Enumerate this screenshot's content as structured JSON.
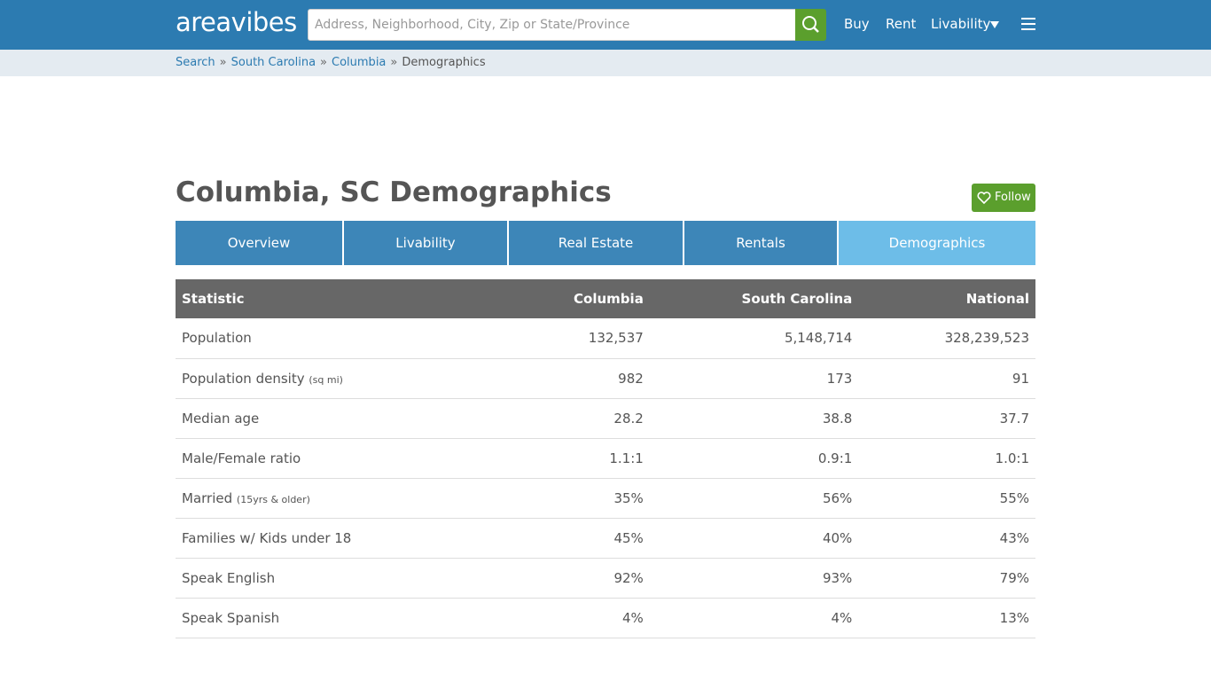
{
  "header": {
    "logo": "areavibes",
    "search_placeholder": "Address, Neighborhood, City, Zip or State/Province",
    "nav": [
      "Buy",
      "Rent",
      "Livability"
    ]
  },
  "breadcrumb": {
    "items": [
      "Search",
      "South Carolina",
      "Columbia",
      "Demographics"
    ],
    "separator": "»"
  },
  "page": {
    "title": "Columbia, SC Demographics",
    "follow": "Follow",
    "tabs": [
      "Overview",
      "Livability",
      "Real Estate",
      "Rentals",
      "Demographics"
    ]
  },
  "table": {
    "columns": [
      "Statistic",
      "Columbia",
      "South Carolina",
      "National"
    ],
    "rows": [
      {
        "label": "Population",
        "cells": [
          "132,537",
          "5,148,714",
          "328,239,523"
        ]
      },
      {
        "label": "Population density",
        "note": "(sq mi)",
        "cells": [
          "982",
          "173",
          "91"
        ]
      },
      {
        "label": "Median age",
        "cells": [
          "28.2",
          "38.8",
          "37.7"
        ]
      },
      {
        "label": "Male/Female ratio",
        "cells": [
          "1.1:1",
          "0.9:1",
          "1.0:1"
        ]
      },
      {
        "label": "Married",
        "note": "(15yrs & older)",
        "cells": [
          "35%",
          "56%",
          "55%"
        ]
      },
      {
        "label": "Families w/ Kids under 18",
        "cells": [
          "45%",
          "40%",
          "43%"
        ]
      },
      {
        "label": "Speak English",
        "cells": [
          "92%",
          "93%",
          "79%"
        ]
      },
      {
        "label": "Speak Spanish",
        "cells": [
          "4%",
          "4%",
          "13%"
        ]
      }
    ]
  }
}
